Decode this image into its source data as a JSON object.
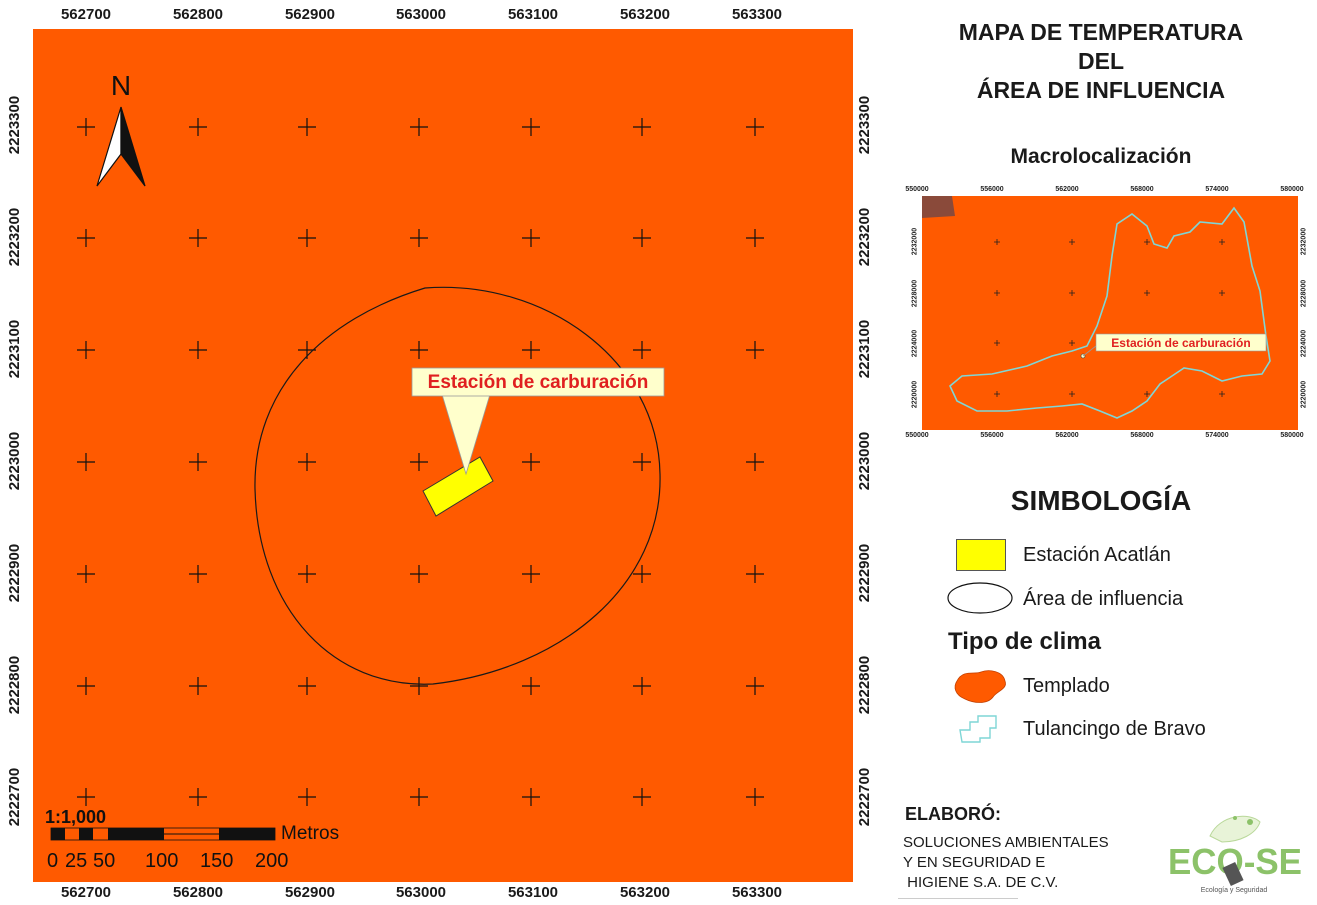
{
  "map": {
    "title_lines": [
      "MAPA DE TEMPERATURA",
      "DEL",
      "ÁREA DE INFLUENCIA"
    ],
    "x_ticks": [
      "562700",
      "562800",
      "562900",
      "563000",
      "563100",
      "563200",
      "563300"
    ],
    "y_ticks": [
      "2223300",
      "2223200",
      "2223100",
      "2223000",
      "2222900",
      "2222800",
      "2222700"
    ],
    "callout": "Estación de carburación",
    "north_label": "N",
    "scale_ratio": "1:1,000",
    "scale_unit": "Metros",
    "scale_labels": [
      "0",
      "25",
      "50",
      "100",
      "150",
      "200"
    ],
    "background_color": "#ff5a00"
  },
  "inset": {
    "title": "Macrolocalización",
    "x_ticks": [
      "550000",
      "556000",
      "562000",
      "568000",
      "574000",
      "580000"
    ],
    "y_ticks": [
      "2232000",
      "2228000",
      "2224000",
      "2220000"
    ],
    "callout": "Estación de carburación"
  },
  "legend": {
    "title": "SIMBOLOGÍA",
    "items": [
      {
        "label": "Estación Acatlán",
        "color": "#ffff00"
      },
      {
        "label": "Área de influencia",
        "color": "#ffffff"
      }
    ],
    "clima_title": "Tipo de clima",
    "clima_items": [
      {
        "label": "Templado",
        "color": "#ff5a00"
      },
      {
        "label": "Tulancingo de Bravo",
        "color": "#7fd6d6"
      }
    ]
  },
  "credits": {
    "heading": "ELABORÓ:",
    "org_lines": [
      "SOLUCIONES AMBIENTALES",
      "Y EN SEGURIDAD E",
      " HIGIENE S.A. DE C.V."
    ],
    "logo_text": "ECO-SE",
    "logo_sub": "Ecología y Seguridad"
  }
}
